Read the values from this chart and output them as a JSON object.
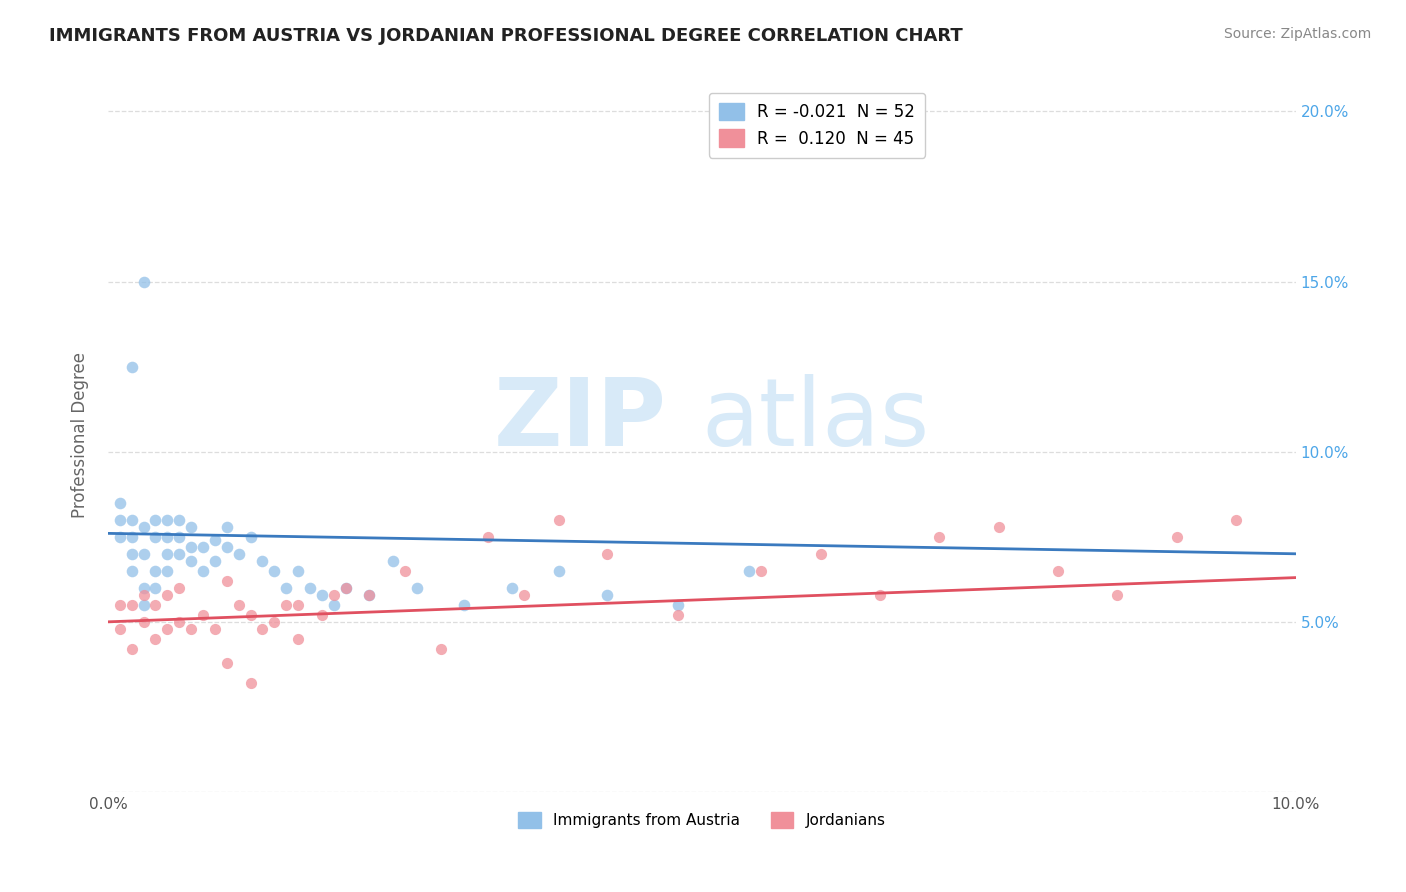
{
  "title": "IMMIGRANTS FROM AUSTRIA VS JORDANIAN PROFESSIONAL DEGREE CORRELATION CHART",
  "source_text": "Source: ZipAtlas.com",
  "ylabel": "Professional Degree",
  "xlim": [
    0.0,
    0.1
  ],
  "ylim": [
    0.0,
    0.21
  ],
  "legend_R1": "R = -0.021",
  "legend_N1": "N = 52",
  "legend_R2": "R =  0.120",
  "legend_N2": "N = 45",
  "color_austria": "#92c0e8",
  "color_jordan": "#f0909a",
  "color_austria_line": "#3a7abf",
  "color_jordan_line": "#e05060",
  "austria_scatter_x": [
    0.001,
    0.001,
    0.001,
    0.002,
    0.002,
    0.002,
    0.002,
    0.003,
    0.003,
    0.003,
    0.003,
    0.004,
    0.004,
    0.004,
    0.004,
    0.005,
    0.005,
    0.005,
    0.005,
    0.006,
    0.006,
    0.006,
    0.007,
    0.007,
    0.007,
    0.008,
    0.008,
    0.009,
    0.009,
    0.01,
    0.01,
    0.011,
    0.012,
    0.013,
    0.014,
    0.015,
    0.016,
    0.017,
    0.018,
    0.019,
    0.02,
    0.022,
    0.024,
    0.026,
    0.03,
    0.034,
    0.038,
    0.042,
    0.048,
    0.054,
    0.002,
    0.003
  ],
  "austria_scatter_y": [
    0.075,
    0.08,
    0.085,
    0.065,
    0.07,
    0.075,
    0.08,
    0.055,
    0.06,
    0.07,
    0.078,
    0.06,
    0.065,
    0.075,
    0.08,
    0.065,
    0.07,
    0.075,
    0.08,
    0.07,
    0.075,
    0.08,
    0.068,
    0.072,
    0.078,
    0.065,
    0.072,
    0.068,
    0.074,
    0.072,
    0.078,
    0.07,
    0.075,
    0.068,
    0.065,
    0.06,
    0.065,
    0.06,
    0.058,
    0.055,
    0.06,
    0.058,
    0.068,
    0.06,
    0.055,
    0.06,
    0.065,
    0.058,
    0.055,
    0.065,
    0.125,
    0.15
  ],
  "jordan_scatter_x": [
    0.001,
    0.001,
    0.002,
    0.002,
    0.003,
    0.003,
    0.004,
    0.004,
    0.005,
    0.005,
    0.006,
    0.006,
    0.007,
    0.008,
    0.009,
    0.01,
    0.011,
    0.012,
    0.013,
    0.015,
    0.016,
    0.018,
    0.02,
    0.022,
    0.025,
    0.028,
    0.032,
    0.035,
    0.038,
    0.042,
    0.048,
    0.055,
    0.06,
    0.065,
    0.07,
    0.075,
    0.08,
    0.085,
    0.09,
    0.095,
    0.01,
    0.012,
    0.014,
    0.016,
    0.019
  ],
  "jordan_scatter_y": [
    0.048,
    0.055,
    0.042,
    0.055,
    0.05,
    0.058,
    0.045,
    0.055,
    0.048,
    0.058,
    0.05,
    0.06,
    0.048,
    0.052,
    0.048,
    0.062,
    0.055,
    0.052,
    0.048,
    0.055,
    0.045,
    0.052,
    0.06,
    0.058,
    0.065,
    0.042,
    0.075,
    0.058,
    0.08,
    0.07,
    0.052,
    0.065,
    0.07,
    0.058,
    0.075,
    0.078,
    0.065,
    0.058,
    0.075,
    0.08,
    0.038,
    0.032,
    0.05,
    0.055,
    0.058
  ],
  "austria_line_x": [
    0.0,
    0.1
  ],
  "austria_line_y": [
    0.076,
    0.07
  ],
  "jordan_line_x": [
    0.0,
    0.1
  ],
  "jordan_line_y": [
    0.05,
    0.063
  ],
  "background_color": "#ffffff",
  "grid_color": "#dddddd",
  "watermark_part1": "ZIP",
  "watermark_part2": "atlas"
}
